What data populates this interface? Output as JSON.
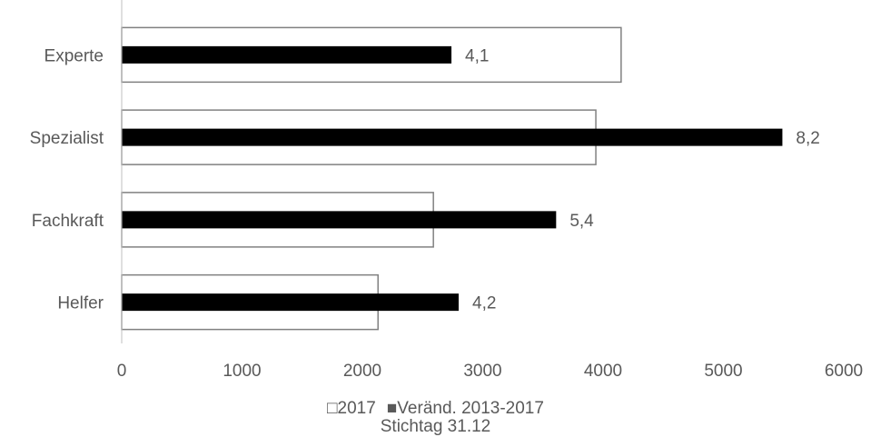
{
  "chart_data": {
    "type": "bar",
    "orientation": "horizontal",
    "categories": [
      "Experte",
      "Spezialist",
      "Fachkraft",
      "Helfer"
    ],
    "series": [
      {
        "name": "2017",
        "values": [
          4150,
          3940,
          2590,
          2130
        ],
        "style": "outline",
        "color": "#ffffff",
        "stroke": "#808080"
      },
      {
        "name": "Veränd. 2013-2017",
        "values": [
          2740,
          5490,
          3610,
          2800
        ],
        "data_labels": [
          "4,1",
          "8,2",
          "5,4",
          "4,2"
        ],
        "style": "solid",
        "color": "#000000"
      }
    ],
    "xlim": [
      0,
      6000
    ],
    "xticks": [
      "0",
      "1000",
      "2000",
      "3000",
      "4000",
      "5000",
      "6000"
    ],
    "caption": "Stichtag 31.12",
    "grid": false,
    "legend_position": "bottom"
  },
  "legend": {
    "symbol_open": "□",
    "symbol_solid": "■",
    "item1": "2017",
    "item2": "Veränd. 2013-2017",
    "caption": "Stichtag 31.12"
  }
}
